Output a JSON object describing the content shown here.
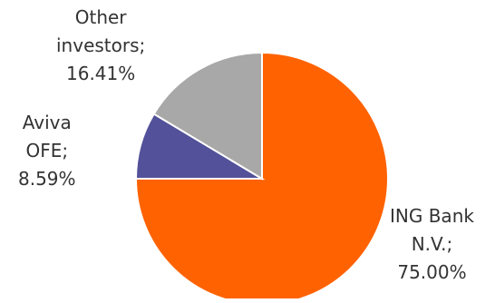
{
  "chart_data": {
    "type": "pie",
    "slices": [
      {
        "name": "ING Bank N.V.",
        "value": 75.0,
        "label_lines": [
          "ING Bank",
          "N.V.;",
          "75.00%"
        ],
        "color": "#FF6200"
      },
      {
        "name": "Aviva OFE",
        "value": 8.59,
        "label_lines": [
          "Aviva",
          "OFE;",
          "8.59%"
        ],
        "color": "#525199"
      },
      {
        "name": "Other investors",
        "value": 16.41,
        "label_lines": [
          "Other",
          "investors;",
          "16.41%"
        ],
        "color": "#A8A8A8"
      }
    ],
    "start_angle": "12 o'clock",
    "direction": "clockwise"
  }
}
